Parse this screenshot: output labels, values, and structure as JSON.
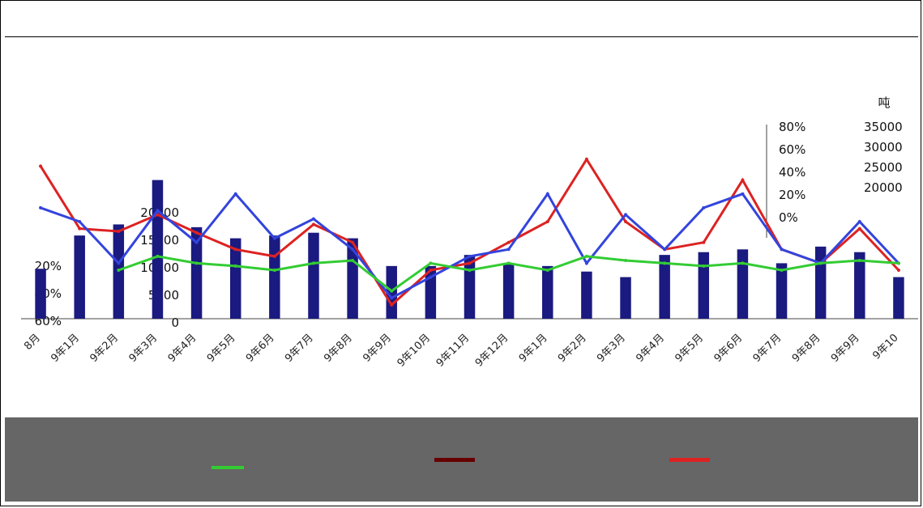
{
  "chart_data": {
    "type": "bar",
    "title": "",
    "y_unit_label": "吨",
    "right_ticks_pct": [
      "80%",
      "60%",
      "40%",
      "20%",
      "0%"
    ],
    "right_ticks_val": [
      "35000",
      "30000",
      "25000",
      "20000"
    ],
    "left_ticks_val": [
      "20000",
      "15000",
      "10000",
      "5000",
      "0"
    ],
    "left_ticks_pct": [
      "20%",
      "40%",
      "60%"
    ],
    "ylim_pct": [
      -60,
      80
    ],
    "ylim_val": [
      0,
      35000
    ],
    "categories": [
      "8月",
      "9年1月",
      "9年2月",
      "9年3月",
      "9年4月",
      "9年5月",
      "9年6月",
      "9年7月",
      "9年8月",
      "9年9月",
      "9年10月",
      "9年11月",
      "9年12月",
      "9年1月",
      "9年2月",
      "9年3月",
      "9年4月",
      "9年5月",
      "9年6月",
      "9年7月",
      "9年8月",
      "9年9月",
      "9年10"
    ],
    "series": [
      {
        "kind": "bar",
        "color": "#1a1a80",
        "values": [
          9000,
          15000,
          17000,
          25000,
          16500,
          14500,
          15000,
          15500,
          14500,
          9500,
          9500,
          11500,
          10000,
          9500,
          8500,
          7500,
          11500,
          12000,
          12500,
          10000,
          13000,
          12000,
          7500
        ]
      },
      {
        "kind": "line",
        "color": "#dd2222",
        "values": [
          50,
          5,
          3,
          15,
          2,
          -10,
          -15,
          8,
          -5,
          -50,
          -25,
          -20,
          -5,
          10,
          55,
          10,
          -10,
          -5,
          40,
          -10,
          -20,
          5,
          -25
        ]
      },
      {
        "kind": "line",
        "color": "#3344dd",
        "values": [
          20,
          10,
          -20,
          18,
          -5,
          30,
          -2,
          12,
          -10,
          -45,
          -30,
          -15,
          -10,
          30,
          -20,
          15,
          -10,
          20,
          30,
          -10,
          -20,
          10,
          -20
        ]
      },
      {
        "kind": "line",
        "color": "#33cc33",
        "values": [
          null,
          null,
          -25,
          -15,
          -20,
          -22,
          -25,
          -20,
          -18,
          -40,
          -20,
          -25,
          -20,
          -25,
          -15,
          -18,
          -20,
          -22,
          -20,
          -25,
          -20,
          -18,
          -20
        ]
      }
    ],
    "legend_position": "bottom"
  }
}
